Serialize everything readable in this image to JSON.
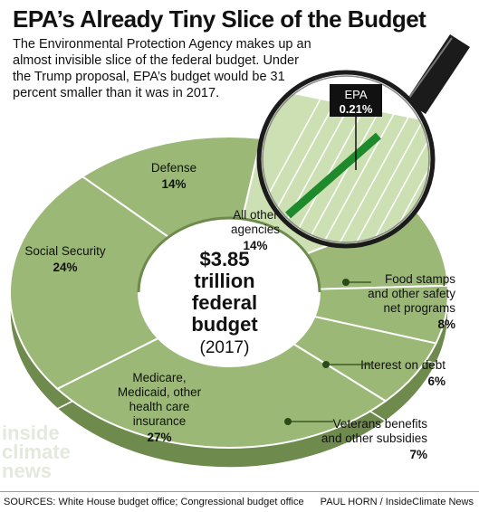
{
  "header": {
    "title": "EPA’s Already Tiny Slice of the Budget",
    "subtitle": "The Environmental Protection Agency makes up an almost invisible slice of the federal budget. Under the Trump proposal, EPA’s budget would be 31 percent smaller than it was in 2017."
  },
  "center": {
    "line1": "$3.85",
    "line2": "trillion",
    "line3": "federal",
    "line4": "budget",
    "line5": "(2017)"
  },
  "chart_data": {
    "type": "pie",
    "title": "EPA’s Already Tiny Slice of the Budget",
    "total_label": "$3.85 trillion federal budget (2017)",
    "categories": [
      "Defense",
      "All other agencies",
      "Food stamps and other safety net programs",
      "Interest on debt",
      "Veterans benefits and other subsidies",
      "Medicare, Medicaid, other health care insurance",
      "Social Security"
    ],
    "values": [
      14,
      14,
      8,
      6,
      7,
      27,
      24
    ],
    "value_labels": [
      "14%",
      "14%",
      "8%",
      "6%",
      "7%",
      "27%",
      "24%"
    ],
    "inset": {
      "label": "EPA",
      "value": 0.21,
      "value_label": "0.21%"
    }
  },
  "labels": {
    "defense": [
      "Defense"
    ],
    "allother": [
      "All other",
      "agencies"
    ],
    "food": [
      "Food stamps",
      "and other safety",
      "net programs"
    ],
    "interest": [
      "Interest on debt"
    ],
    "veterans": [
      "Veterans benefits",
      "and other subsidies"
    ],
    "medicare": [
      "Medicare,",
      "Medicaid, other",
      "health care",
      "insurance"
    ],
    "social": [
      "Social Security"
    ]
  },
  "watermark": [
    "inside",
    "climate",
    "news"
  ],
  "footer": {
    "sources": "SOURCES: White House budget office; Congressional budget office",
    "credit": "PAUL HORN / InsideClimate News"
  },
  "colors": {
    "slice": "#9bb877",
    "slice_side": "#6e8a4c",
    "slice_light": "#cde0b4",
    "epa": "#1e8a2c",
    "border": "#ffffff"
  }
}
